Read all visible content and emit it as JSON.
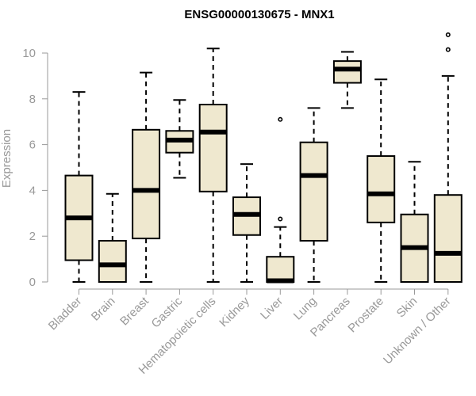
{
  "chart_data": {
    "type": "boxplot",
    "title": "ENSG00000130675 - MNX1",
    "xlabel": "",
    "ylabel": "Expression",
    "ylim": [
      0,
      10
    ],
    "yticks": [
      0,
      2,
      4,
      6,
      8,
      10
    ],
    "box_fill": "#efe8cf",
    "box_stroke": "#000000",
    "axis_color": "#999999",
    "categories": [
      "Bladder",
      "Brain",
      "Breast",
      "Gastric",
      "Hematopoietic cells",
      "Kidney",
      "Liver",
      "Lung",
      "Pancreas",
      "Prostate",
      "Skin",
      "Unknown / Other"
    ],
    "boxes": [
      {
        "label": "Bladder",
        "whisker_low": 0,
        "q1": 0.95,
        "median": 2.8,
        "q3": 4.65,
        "whisker_high": 8.3,
        "outliers": []
      },
      {
        "label": "Brain",
        "whisker_low": 0,
        "q1": 0,
        "median": 0.75,
        "q3": 1.8,
        "whisker_high": 3.85,
        "outliers": []
      },
      {
        "label": "Breast",
        "whisker_low": 0,
        "q1": 1.9,
        "median": 4.0,
        "q3": 6.65,
        "whisker_high": 9.15,
        "outliers": []
      },
      {
        "label": "Gastric",
        "whisker_low": 4.55,
        "q1": 5.65,
        "median": 6.2,
        "q3": 6.6,
        "whisker_high": 7.95,
        "outliers": []
      },
      {
        "label": "Hematopoietic cells",
        "whisker_low": 0,
        "q1": 3.95,
        "median": 6.55,
        "q3": 7.75,
        "whisker_high": 10.2,
        "outliers": []
      },
      {
        "label": "Kidney",
        "whisker_low": 0,
        "q1": 2.05,
        "median": 2.95,
        "q3": 3.7,
        "whisker_high": 5.15,
        "outliers": []
      },
      {
        "label": "Liver",
        "whisker_low": 0,
        "q1": 0,
        "median": 0.05,
        "q3": 1.1,
        "whisker_high": 2.4,
        "outliers": [
          2.75,
          7.1
        ]
      },
      {
        "label": "Lung",
        "whisker_low": 0,
        "q1": 1.8,
        "median": 4.65,
        "q3": 6.1,
        "whisker_high": 7.6,
        "outliers": []
      },
      {
        "label": "Pancreas",
        "whisker_low": 7.6,
        "q1": 8.7,
        "median": 9.3,
        "q3": 9.65,
        "whisker_high": 10.05,
        "outliers": []
      },
      {
        "label": "Prostate",
        "whisker_low": 0,
        "q1": 2.6,
        "median": 3.85,
        "q3": 5.5,
        "whisker_high": 8.85,
        "outliers": []
      },
      {
        "label": "Skin",
        "whisker_low": 0,
        "q1": 0,
        "median": 1.5,
        "q3": 2.95,
        "whisker_high": 5.25,
        "outliers": []
      },
      {
        "label": "Unknown / Other",
        "whisker_low": 0,
        "q1": 0,
        "median": 1.25,
        "q3": 3.8,
        "whisker_high": 9.0,
        "outliers": [
          10.15,
          10.8
        ]
      }
    ]
  }
}
